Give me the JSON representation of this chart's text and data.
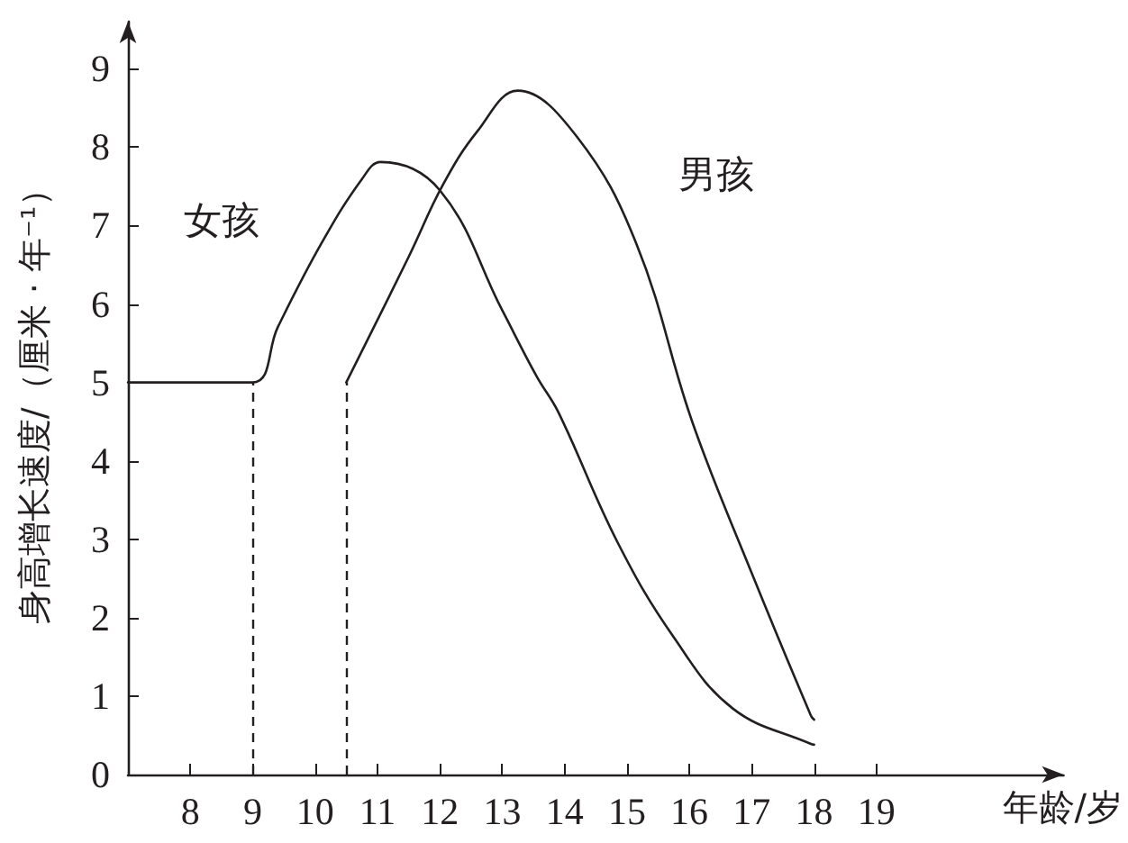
{
  "chart_data": {
    "type": "line",
    "xlabel": "年龄/岁",
    "ylabel": "身高增长速度/（厘米 · 年⁻¹）",
    "series": [
      {
        "name": "女孩",
        "color": "#231f20",
        "x": [
          7,
          9,
          9.4,
          10.1,
          10.75,
          11.05,
          12,
          13,
          13.55,
          13.9,
          14.85,
          15.75,
          16.7,
          17.95,
          18
        ],
        "values": [
          5,
          5,
          5.7,
          6.77,
          7.59,
          7.81,
          7.45,
          5.92,
          5.08,
          4.62,
          2.96,
          1.75,
          0.84,
          0.39,
          0.38
        ]
      },
      {
        "name": "男孩",
        "color": "#231f20",
        "x": [
          10.5,
          11.5,
          12.05,
          12.6,
          13.25,
          14.2,
          15.15,
          16.05,
          17,
          17.95,
          18
        ],
        "values": [
          5,
          6.6,
          7.52,
          8.2,
          8.72,
          8.13,
          6.77,
          4.49,
          2.57,
          0.75,
          0.7
        ]
      }
    ],
    "ref_lines": [
      {
        "axis": "x",
        "value": 9,
        "line_style": "dashed"
      },
      {
        "axis": "x",
        "value": 10.5,
        "line_style": "dashed"
      }
    ],
    "xlim": [
      7,
      22
    ],
    "xticks": [
      8,
      9,
      10,
      11,
      12,
      13,
      14,
      15,
      16,
      17,
      18,
      19
    ],
    "ylim": [
      0,
      9.6
    ],
    "yticks": [
      0,
      1,
      2,
      3,
      4,
      5,
      6,
      7,
      8,
      9
    ],
    "grid": false,
    "marker": "none",
    "line_style": "solid"
  }
}
